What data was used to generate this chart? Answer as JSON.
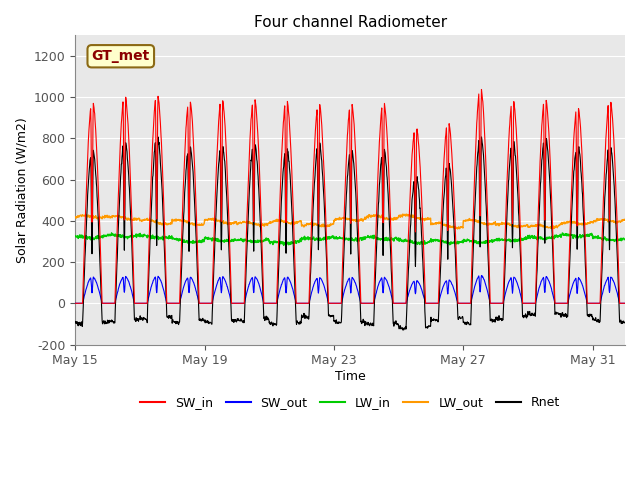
{
  "title": "Four channel Radiometer",
  "xlabel": "Time",
  "ylabel": "Solar Radiation (W/m2)",
  "ylim": [
    -200,
    1300
  ],
  "yticks": [
    -200,
    0,
    200,
    400,
    600,
    800,
    1000,
    1200
  ],
  "xtick_labels": [
    "May 15",
    "May 19",
    "May 23",
    "May 27",
    "May 31"
  ],
  "xtick_positions": [
    0,
    4,
    8,
    12,
    16
  ],
  "xlim": [
    0,
    17
  ],
  "background_color": "#ffffff",
  "plot_bg_color": "#e8e8e8",
  "annotation_text": "GT_met",
  "annotation_bg": "#ffffcc",
  "annotation_border": "#8B6914",
  "colors": {
    "SW_in": "#ff0000",
    "SW_out": "#0000ff",
    "LW_in": "#00cc00",
    "LW_out": "#ff9900",
    "Rnet": "#000000"
  },
  "legend_labels": [
    "SW_in",
    "SW_out",
    "LW_in",
    "LW_out",
    "Rnet"
  ],
  "figsize": [
    6.4,
    4.8
  ],
  "dpi": 100
}
